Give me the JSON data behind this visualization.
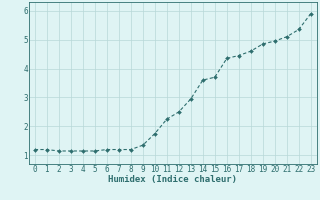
{
  "x": [
    0,
    1,
    2,
    3,
    4,
    5,
    6,
    7,
    8,
    9,
    10,
    11,
    12,
    13,
    14,
    15,
    16,
    17,
    18,
    19,
    20,
    21,
    22,
    23
  ],
  "y": [
    1.2,
    1.2,
    1.15,
    1.15,
    1.15,
    1.15,
    1.2,
    1.2,
    1.2,
    1.35,
    1.75,
    2.25,
    2.5,
    2.95,
    3.6,
    3.7,
    4.35,
    4.45,
    4.6,
    4.85,
    4.95,
    5.1,
    5.35,
    5.9
  ],
  "line_color": "#2e6e6e",
  "marker": "D",
  "marker_size": 2.0,
  "bg_color": "#dff4f4",
  "grid_color": "#b8d8d8",
  "xlabel": "Humidex (Indice chaleur)",
  "xlim": [
    -0.5,
    23.5
  ],
  "ylim": [
    0.7,
    6.3
  ],
  "yticks": [
    1,
    2,
    3,
    4,
    5,
    6
  ],
  "xticks": [
    0,
    1,
    2,
    3,
    4,
    5,
    6,
    7,
    8,
    9,
    10,
    11,
    12,
    13,
    14,
    15,
    16,
    17,
    18,
    19,
    20,
    21,
    22,
    23
  ],
  "tick_color": "#2e6e6e",
  "label_color": "#2e6e6e",
  "spine_color": "#2e6e6e",
  "font_size_xlabel": 6.5,
  "font_size_tick": 5.5,
  "linewidth": 0.8
}
